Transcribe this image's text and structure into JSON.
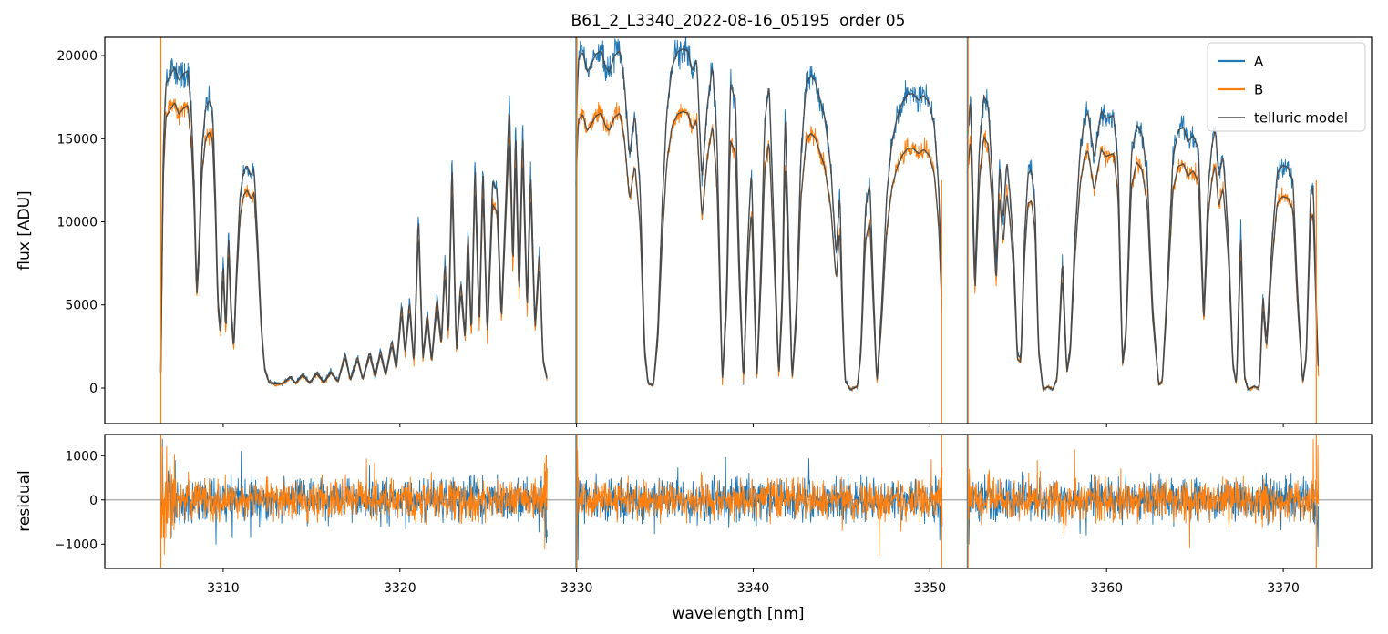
{
  "chart_data": {
    "type": "line",
    "title": "B61_2_L3340_2022-08-16_05195  order 05",
    "xlabel": "wavelength [nm]",
    "xlim": [
      3303.3,
      3375.0
    ],
    "xticks": [
      3310,
      3320,
      3330,
      3340,
      3350,
      3360,
      3370
    ],
    "grid": false,
    "background": "#ffffff",
    "legend": {
      "position": "upper right",
      "border_color": "#cccccc"
    },
    "panels": [
      {
        "name": "flux",
        "ylabel": "flux [ADU]",
        "ylim": [
          -2140,
          21100
        ],
        "yticks": [
          {
            "value": 0,
            "label": "0"
          },
          {
            "value": 5000,
            "label": "5000"
          },
          {
            "value": 10000,
            "label": "10000"
          },
          {
            "value": 15000,
            "label": "15000"
          },
          {
            "value": 20000,
            "label": "20000"
          }
        ]
      },
      {
        "name": "residual",
        "ylabel": "residual",
        "ylim": [
          -1550,
          1480
        ],
        "yticks": [
          {
            "value": -1000,
            "label": "−1000"
          },
          {
            "value": 0,
            "label": "0"
          },
          {
            "value": 1000,
            "label": "1000"
          }
        ],
        "zero_line_color": "#7f7f7f"
      }
    ],
    "series": [
      {
        "name": "A",
        "color": "#1f77b4",
        "role": "nodding-position-A-spectrum"
      },
      {
        "name": "B",
        "color": "#ff7f0e",
        "role": "nodding-position-B-spectrum"
      },
      {
        "name": "telluric model",
        "color": "#484848",
        "role": "model"
      }
    ],
    "noise": {
      "flux_base": 150,
      "flux_scale_A": 0.036,
      "flux_scale_B": 0.032,
      "residual_sigma_A": 480,
      "residual_sigma_B": 450
    },
    "edge_spikes": [
      {
        "x": 3306.47,
        "series": "B",
        "top": 21100
      },
      {
        "x": 3329.97,
        "series": "A",
        "top": 21100
      },
      {
        "x": 3330.02,
        "series": "B",
        "top": 21100
      },
      {
        "x": 3350.67,
        "series": "B",
        "top": 12500
      },
      {
        "x": 3352.12,
        "series": "A",
        "top": 21100
      },
      {
        "x": 3352.16,
        "series": "B",
        "top": 21100
      },
      {
        "x": 3371.87,
        "series": "B",
        "top": 12500
      }
    ],
    "chunks": [
      {
        "xrange": [
          3306.47,
          3328.35
        ],
        "b_scale": 0.89,
        "model_A": [
          [
            3306.47,
            1000
          ],
          [
            3306.6,
            14000
          ],
          [
            3306.75,
            18300
          ],
          [
            3307.0,
            18800
          ],
          [
            3307.25,
            19300
          ],
          [
            3307.5,
            18500
          ],
          [
            3307.75,
            18900
          ],
          [
            3308.0,
            19100
          ],
          [
            3308.2,
            16500
          ],
          [
            3308.35,
            12500
          ],
          [
            3308.5,
            6000
          ],
          [
            3308.65,
            9000
          ],
          [
            3308.8,
            14500
          ],
          [
            3309.0,
            16800
          ],
          [
            3309.2,
            17300
          ],
          [
            3309.4,
            16800
          ],
          [
            3309.55,
            12000
          ],
          [
            3309.7,
            5400
          ],
          [
            3309.85,
            3500
          ],
          [
            3310.0,
            7800
          ],
          [
            3310.15,
            3600
          ],
          [
            3310.3,
            9500
          ],
          [
            3310.45,
            4800
          ],
          [
            3310.6,
            2500
          ],
          [
            3310.75,
            7000
          ],
          [
            3310.95,
            11500
          ],
          [
            3311.15,
            13000
          ],
          [
            3311.35,
            13400
          ],
          [
            3311.55,
            12800
          ],
          [
            3311.75,
            13200
          ],
          [
            3311.95,
            9000
          ],
          [
            3312.15,
            4000
          ],
          [
            3312.35,
            1200
          ],
          [
            3312.6,
            350
          ],
          [
            3313.0,
            260
          ],
          [
            3313.4,
            300
          ],
          [
            3313.8,
            700
          ],
          [
            3314.1,
            300
          ],
          [
            3314.5,
            850
          ],
          [
            3314.9,
            320
          ],
          [
            3315.3,
            950
          ],
          [
            3315.7,
            350
          ],
          [
            3316.1,
            1000
          ],
          [
            3316.5,
            400
          ],
          [
            3316.9,
            2100
          ],
          [
            3317.2,
            500
          ],
          [
            3317.6,
            1900
          ],
          [
            3317.9,
            550
          ],
          [
            3318.3,
            2200
          ],
          [
            3318.6,
            700
          ],
          [
            3318.9,
            2300
          ],
          [
            3319.2,
            800
          ],
          [
            3319.55,
            2900
          ],
          [
            3319.8,
            1200
          ],
          [
            3320.1,
            5100
          ],
          [
            3320.3,
            2200
          ],
          [
            3320.55,
            5300
          ],
          [
            3320.8,
            1500
          ],
          [
            3321.05,
            10600
          ],
          [
            3321.3,
            1800
          ],
          [
            3321.55,
            4600
          ],
          [
            3321.8,
            1700
          ],
          [
            3322.1,
            5500
          ],
          [
            3322.35,
            2800
          ],
          [
            3322.55,
            7800
          ],
          [
            3322.75,
            3200
          ],
          [
            3322.95,
            13900
          ],
          [
            3323.2,
            2300
          ],
          [
            3323.45,
            6500
          ],
          [
            3323.7,
            3100
          ],
          [
            3323.85,
            9800
          ],
          [
            3324.05,
            3300
          ],
          [
            3324.25,
            13800
          ],
          [
            3324.5,
            3800
          ],
          [
            3324.7,
            13600
          ],
          [
            3324.95,
            3300
          ],
          [
            3325.25,
            12400
          ],
          [
            3325.5,
            11900
          ],
          [
            3325.75,
            4400
          ],
          [
            3326.2,
            17300
          ],
          [
            3326.4,
            7800
          ],
          [
            3326.55,
            15900
          ],
          [
            3326.75,
            5800
          ],
          [
            3326.95,
            15800
          ],
          [
            3327.2,
            4900
          ],
          [
            3327.4,
            13300
          ],
          [
            3327.65,
            3800
          ],
          [
            3327.9,
            8400
          ],
          [
            3328.1,
            1800
          ],
          [
            3328.35,
            500
          ]
        ]
      },
      {
        "xrange": [
          3329.97,
          3350.7
        ],
        "b_scale": 0.815,
        "model_A": [
          [
            3329.97,
            15000
          ],
          [
            3330.1,
            19800
          ],
          [
            3330.35,
            20200
          ],
          [
            3330.6,
            19000
          ],
          [
            3330.8,
            19400
          ],
          [
            3331.1,
            20100
          ],
          [
            3331.4,
            20300
          ],
          [
            3331.65,
            19300
          ],
          [
            3331.85,
            19000
          ],
          [
            3332.15,
            20000
          ],
          [
            3332.45,
            20300
          ],
          [
            3332.7,
            18500
          ],
          [
            3333.0,
            13900
          ],
          [
            3333.3,
            16500
          ],
          [
            3333.6,
            12000
          ],
          [
            3333.85,
            2500
          ],
          [
            3334.05,
            300
          ],
          [
            3334.35,
            150
          ],
          [
            3334.6,
            3500
          ],
          [
            3334.85,
            11000
          ],
          [
            3335.1,
            16500
          ],
          [
            3335.4,
            19300
          ],
          [
            3335.7,
            20200
          ],
          [
            3336.0,
            20400
          ],
          [
            3336.3,
            20300
          ],
          [
            3336.55,
            19100
          ],
          [
            3336.8,
            19800
          ],
          [
            3337.1,
            12500
          ],
          [
            3337.4,
            17000
          ],
          [
            3337.7,
            19400
          ],
          [
            3337.95,
            15000
          ],
          [
            3338.25,
            300
          ],
          [
            3338.5,
            6000
          ],
          [
            3338.7,
            18300
          ],
          [
            3339.0,
            17300
          ],
          [
            3339.2,
            8000
          ],
          [
            3339.45,
            300
          ],
          [
            3339.7,
            9000
          ],
          [
            3339.9,
            13300
          ],
          [
            3340.2,
            400
          ],
          [
            3340.45,
            8000
          ],
          [
            3340.65,
            16000
          ],
          [
            3340.9,
            18300
          ],
          [
            3341.1,
            12000
          ],
          [
            3341.45,
            700
          ],
          [
            3341.65,
            6000
          ],
          [
            3341.8,
            16800
          ],
          [
            3342.0,
            9000
          ],
          [
            3342.2,
            500
          ],
          [
            3342.45,
            5000
          ],
          [
            3342.7,
            14000
          ],
          [
            3343.0,
            18300
          ],
          [
            3343.25,
            18800
          ],
          [
            3343.5,
            18500
          ],
          [
            3343.75,
            17500
          ],
          [
            3344.05,
            16300
          ],
          [
            3344.4,
            13200
          ],
          [
            3344.7,
            7900
          ],
          [
            3344.9,
            11900
          ],
          [
            3345.05,
            5000
          ],
          [
            3345.2,
            500
          ],
          [
            3345.5,
            -100
          ],
          [
            3345.9,
            100
          ],
          [
            3346.1,
            2500
          ],
          [
            3346.35,
            10800
          ],
          [
            3346.6,
            12400
          ],
          [
            3346.8,
            6000
          ],
          [
            3347.0,
            300
          ],
          [
            3347.25,
            4500
          ],
          [
            3347.55,
            11500
          ],
          [
            3347.85,
            14800
          ],
          [
            3348.15,
            16300
          ],
          [
            3348.45,
            17200
          ],
          [
            3348.75,
            17700
          ],
          [
            3349.05,
            17700
          ],
          [
            3349.35,
            17300
          ],
          [
            3349.65,
            17600
          ],
          [
            3349.95,
            17200
          ],
          [
            3350.25,
            15800
          ],
          [
            3350.5,
            12000
          ],
          [
            3350.7,
            5000
          ]
        ]
      },
      {
        "xrange": [
          3352.12,
          3372.0
        ],
        "b_scale": 0.86,
        "model_A": [
          [
            3352.12,
            15000
          ],
          [
            3352.3,
            17500
          ],
          [
            3352.55,
            6500
          ],
          [
            3352.8,
            14500
          ],
          [
            3353.05,
            17600
          ],
          [
            3353.3,
            17000
          ],
          [
            3353.55,
            12500
          ],
          [
            3353.75,
            7200
          ],
          [
            3353.95,
            13500
          ],
          [
            3354.15,
            10000
          ],
          [
            3354.35,
            13700
          ],
          [
            3354.55,
            11500
          ],
          [
            3354.75,
            8000
          ],
          [
            3354.95,
            2000
          ],
          [
            3355.15,
            1800
          ],
          [
            3355.35,
            9000
          ],
          [
            3355.55,
            12900
          ],
          [
            3355.75,
            13100
          ],
          [
            3355.95,
            11000
          ],
          [
            3356.15,
            2500
          ],
          [
            3356.4,
            -100
          ],
          [
            3356.7,
            100
          ],
          [
            3356.95,
            -100
          ],
          [
            3357.2,
            600
          ],
          [
            3357.5,
            7900
          ],
          [
            3357.75,
            1000
          ],
          [
            3357.95,
            2500
          ],
          [
            3358.2,
            9000
          ],
          [
            3358.5,
            14200
          ],
          [
            3358.75,
            16200
          ],
          [
            3358.95,
            16600
          ],
          [
            3359.3,
            13800
          ],
          [
            3359.7,
            16700
          ],
          [
            3359.95,
            16200
          ],
          [
            3360.4,
            16400
          ],
          [
            3360.65,
            13500
          ],
          [
            3360.9,
            1500
          ],
          [
            3361.1,
            3500
          ],
          [
            3361.4,
            14000
          ],
          [
            3361.7,
            15800
          ],
          [
            3362.0,
            15300
          ],
          [
            3362.3,
            12900
          ],
          [
            3362.6,
            5000
          ],
          [
            3362.95,
            200
          ],
          [
            3363.15,
            400
          ],
          [
            3363.45,
            6500
          ],
          [
            3363.75,
            13800
          ],
          [
            3364.05,
            15500
          ],
          [
            3364.35,
            15700
          ],
          [
            3364.6,
            14800
          ],
          [
            3364.9,
            15200
          ],
          [
            3365.2,
            14400
          ],
          [
            3365.5,
            4400
          ],
          [
            3365.75,
            12000
          ],
          [
            3365.95,
            14500
          ],
          [
            3366.15,
            15600
          ],
          [
            3366.35,
            12700
          ],
          [
            3366.6,
            14000
          ],
          [
            3366.9,
            9000
          ],
          [
            3367.15,
            1500
          ],
          [
            3367.35,
            200
          ],
          [
            3367.6,
            9800
          ],
          [
            3367.8,
            800
          ],
          [
            3368.0,
            -100
          ],
          [
            3368.35,
            100
          ],
          [
            3368.65,
            0
          ],
          [
            3368.85,
            5700
          ],
          [
            3369.05,
            2700
          ],
          [
            3369.35,
            8500
          ],
          [
            3369.65,
            12900
          ],
          [
            3369.95,
            13400
          ],
          [
            3370.25,
            13300
          ],
          [
            3370.55,
            12500
          ],
          [
            3370.8,
            6000
          ],
          [
            3371.1,
            300
          ],
          [
            3371.3,
            2000
          ],
          [
            3371.55,
            11900
          ],
          [
            3371.7,
            12100
          ],
          [
            3371.87,
            5000
          ],
          [
            3372.0,
            500
          ]
        ]
      }
    ]
  }
}
